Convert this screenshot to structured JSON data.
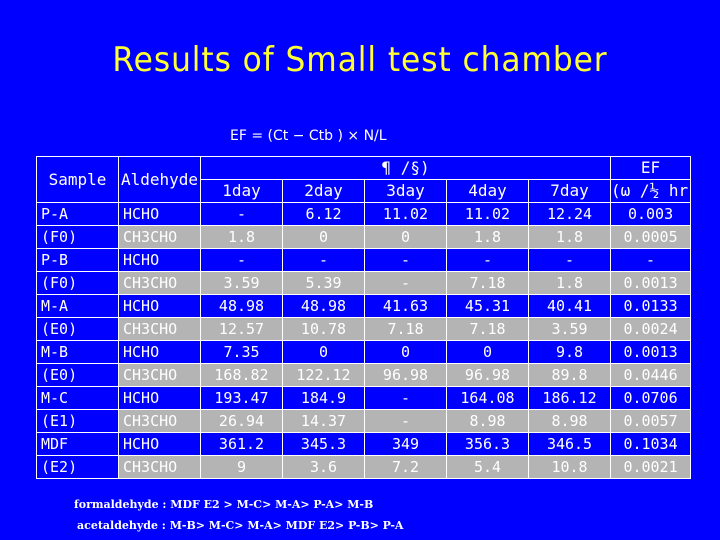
{
  "title": "Results of Small test chamber",
  "formula": "EF = (Ct − Ctb ) × N/L",
  "table": {
    "col_sample": "Sample",
    "col_aldehyde": "Aldehyde",
    "group_header": "¶ /§)",
    "days": [
      "1day",
      "2day",
      "3day",
      "4day",
      "7day"
    ],
    "ef_label": "EF",
    "ef_unit": "(ω /½ hr)",
    "rows": [
      {
        "sample": "P-A",
        "aldehyde": "HCHO",
        "values": [
          "-",
          "6.12",
          "11.02",
          "11.02",
          "12.24"
        ],
        "ef": "0.003",
        "gray": false
      },
      {
        "sample": "(F0)",
        "aldehyde": "CH3CHO",
        "values": [
          "1.8",
          "0",
          "0",
          "1.8",
          "1.8"
        ],
        "ef": "0.0005",
        "gray": true
      },
      {
        "sample": "P-B",
        "aldehyde": "HCHO",
        "values": [
          "-",
          "-",
          "-",
          "-",
          "-"
        ],
        "ef": "-",
        "gray": false
      },
      {
        "sample": "(F0)",
        "aldehyde": "CH3CHO",
        "values": [
          "3.59",
          "5.39",
          "-",
          "7.18",
          "1.8"
        ],
        "ef": "0.0013",
        "gray": true
      },
      {
        "sample": "M-A",
        "aldehyde": "HCHO",
        "values": [
          "48.98",
          "48.98",
          "41.63",
          "45.31",
          "40.41"
        ],
        "ef": "0.0133",
        "gray": false
      },
      {
        "sample": "(E0)",
        "aldehyde": "CH3CHO",
        "values": [
          "12.57",
          "10.78",
          "7.18",
          "7.18",
          "3.59"
        ],
        "ef": "0.0024",
        "gray": true
      },
      {
        "sample": "M-B",
        "aldehyde": "HCHO",
        "values": [
          "7.35",
          "0",
          "0",
          "0",
          "9.8"
        ],
        "ef": "0.0013",
        "gray": false
      },
      {
        "sample": "(E0)",
        "aldehyde": "CH3CHO",
        "values": [
          "168.82",
          "122.12",
          "96.98",
          "96.98",
          "89.8"
        ],
        "ef": "0.0446",
        "gray": true
      },
      {
        "sample": "M-C",
        "aldehyde": "HCHO",
        "values": [
          "193.47",
          "184.9",
          "-",
          "164.08",
          "186.12"
        ],
        "ef": "0.0706",
        "gray": false
      },
      {
        "sample": "(E1)",
        "aldehyde": "CH3CHO",
        "values": [
          "26.94",
          "14.37",
          "-",
          "8.98",
          "8.98"
        ],
        "ef": "0.0057",
        "gray": true
      },
      {
        "sample": "MDF",
        "aldehyde": "HCHO",
        "values": [
          "361.2",
          "345.3",
          "349",
          "356.3",
          "346.5"
        ],
        "ef": "0.1034",
        "gray": false
      },
      {
        "sample": "(E2)",
        "aldehyde": "CH3CHO",
        "values": [
          "9",
          "3.6",
          "7.2",
          "5.4",
          "10.8"
        ],
        "ef": "0.0021",
        "gray": true
      }
    ]
  },
  "notes": {
    "formaldehyde": "formaldehyde : MDF E2 > M-C> M-A> P-A> M-B",
    "acetaldehyde": "acetaldehyde  : M-B> M-C> M-A> MDF E2> P-B> P-A"
  },
  "colors": {
    "background": "#0000ff",
    "title": "#ffff33",
    "row_gray": "#b4b4b4",
    "text": "#ffffff"
  }
}
